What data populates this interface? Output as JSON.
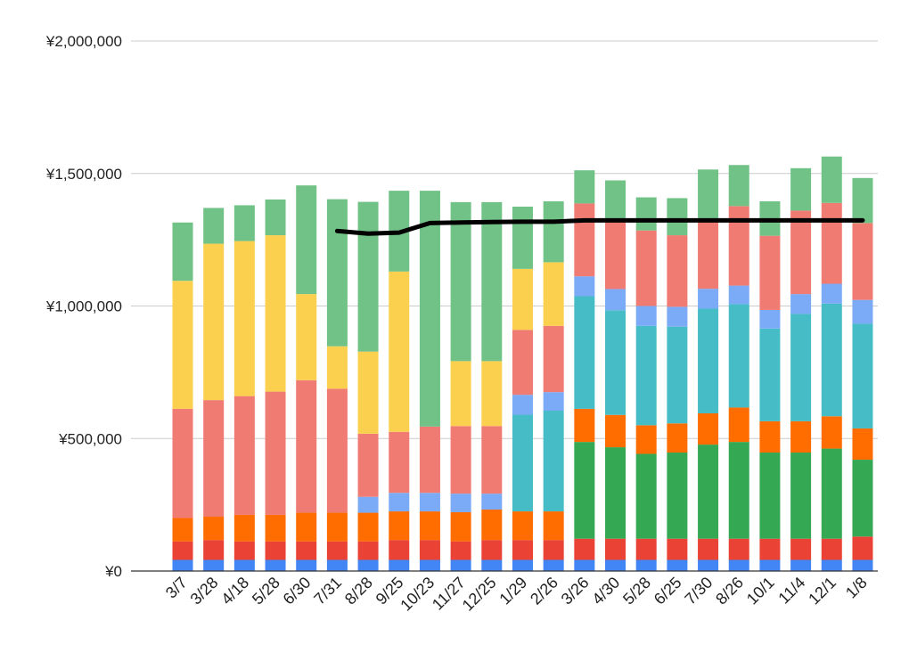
{
  "chart_data": {
    "type": "bar",
    "stacked": true,
    "grid": true,
    "legend": "none",
    "ylim": [
      0,
      2000000
    ],
    "y_ticks": [
      {
        "value": 0,
        "label": "¥0"
      },
      {
        "value": 500000,
        "label": "¥500,000"
      },
      {
        "value": 1000000,
        "label": "¥1,000,000"
      },
      {
        "value": 1500000,
        "label": "¥1,500,000"
      },
      {
        "value": 2000000,
        "label": "¥2,000,000"
      }
    ],
    "categories": [
      "3/7",
      "3/28",
      "4/18",
      "5/28",
      "6/30",
      "7/31",
      "8/28",
      "9/25",
      "10/23",
      "11/27",
      "12/25",
      "1/29",
      "2/26",
      "3/26",
      "4/30",
      "5/28",
      "6/25",
      "7/30",
      "8/26",
      "10/1",
      "11/4",
      "12/1",
      "1/8"
    ],
    "series": [
      {
        "color": "#4285f4",
        "values": [
          42000,
          42000,
          42000,
          42000,
          42000,
          42000,
          42000,
          42000,
          42000,
          42000,
          42000,
          42000,
          42000,
          42000,
          42000,
          42000,
          42000,
          42000,
          42000,
          42000,
          42000,
          42000,
          42000
        ]
      },
      {
        "color": "#ea4335",
        "values": [
          70000,
          75000,
          70000,
          70000,
          70000,
          70000,
          70000,
          75000,
          75000,
          70000,
          75000,
          75000,
          75000,
          80000,
          80000,
          80000,
          80000,
          80000,
          80000,
          80000,
          80000,
          80000,
          88000
        ]
      },
      {
        "color": "#34a853",
        "values": [
          0,
          0,
          0,
          0,
          0,
          0,
          0,
          0,
          0,
          0,
          0,
          0,
          0,
          365000,
          345000,
          320000,
          325000,
          355000,
          365000,
          325000,
          325000,
          340000,
          290000
        ]
      },
      {
        "color": "#ff6d01",
        "values": [
          88000,
          88000,
          100000,
          100000,
          108000,
          108000,
          108000,
          108000,
          108000,
          110000,
          115000,
          108000,
          108000,
          125000,
          122000,
          108000,
          110000,
          118000,
          130000,
          118000,
          118000,
          122000,
          118000
        ]
      },
      {
        "color": "#46bdc6",
        "values": [
          0,
          0,
          0,
          0,
          0,
          0,
          0,
          0,
          0,
          0,
          0,
          365000,
          380000,
          425000,
          395000,
          375000,
          365000,
          395000,
          390000,
          350000,
          405000,
          425000,
          395000
        ]
      },
      {
        "color": "#7baaf7",
        "values": [
          0,
          0,
          0,
          0,
          0,
          0,
          60000,
          70000,
          70000,
          70000,
          60000,
          75000,
          70000,
          75000,
          80000,
          75000,
          75000,
          75000,
          70000,
          70000,
          75000,
          75000,
          90000
        ]
      },
      {
        "color": "#f07b72",
        "values": [
          412000,
          440000,
          448000,
          465000,
          500000,
          468000,
          238000,
          230000,
          250000,
          255000,
          255000,
          245000,
          250000,
          275000,
          255000,
          285000,
          270000,
          265000,
          300000,
          280000,
          315000,
          305000,
          290000
        ]
      },
      {
        "color": "#fcd04f",
        "values": [
          483000,
          590000,
          585000,
          590000,
          325000,
          160000,
          310000,
          605000,
          0,
          245000,
          245000,
          230000,
          240000,
          0,
          0,
          0,
          0,
          0,
          0,
          0,
          0,
          0,
          0
        ]
      },
      {
        "color": "#71c287",
        "values": [
          220000,
          135000,
          135000,
          135000,
          410000,
          555000,
          565000,
          305000,
          890000,
          600000,
          600000,
          235000,
          230000,
          125000,
          155000,
          125000,
          140000,
          185000,
          155000,
          130000,
          160000,
          175000,
          170000
        ]
      }
    ],
    "line": {
      "color": "#000000",
      "values": [
        null,
        null,
        null,
        null,
        null,
        1283000,
        1273000,
        1277000,
        1313000,
        1315000,
        1317000,
        1318000,
        1318000,
        1323000,
        1323000,
        1323000,
        1323000,
        1323000,
        1323000,
        1323000,
        1323000,
        1323000,
        1323000
      ]
    }
  }
}
